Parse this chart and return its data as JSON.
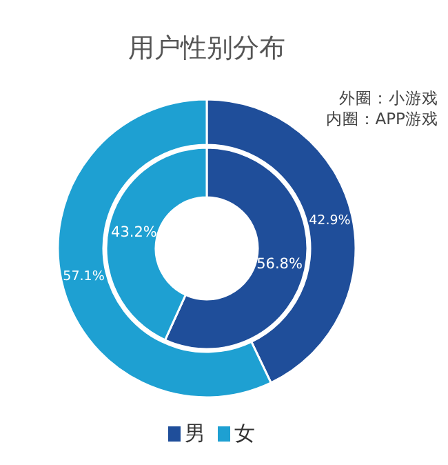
{
  "chart_data": {
    "type": "donut",
    "title": "用户性别分布",
    "annotations": [
      "外圈：小游戏",
      "内圈：APP游戏"
    ],
    "categories": [
      "男",
      "女"
    ],
    "colors": [
      "#1f4e9a",
      "#1ea0d2"
    ],
    "series": [
      {
        "values": [
          42.9,
          57.1
        ]
      },
      {
        "values": [
          56.8,
          43.2
        ]
      }
    ],
    "value_labels": [
      [
        "42.9%",
        "57.1%"
      ],
      [
        "56.8%",
        "43.2%"
      ]
    ],
    "legend": "bottom"
  }
}
